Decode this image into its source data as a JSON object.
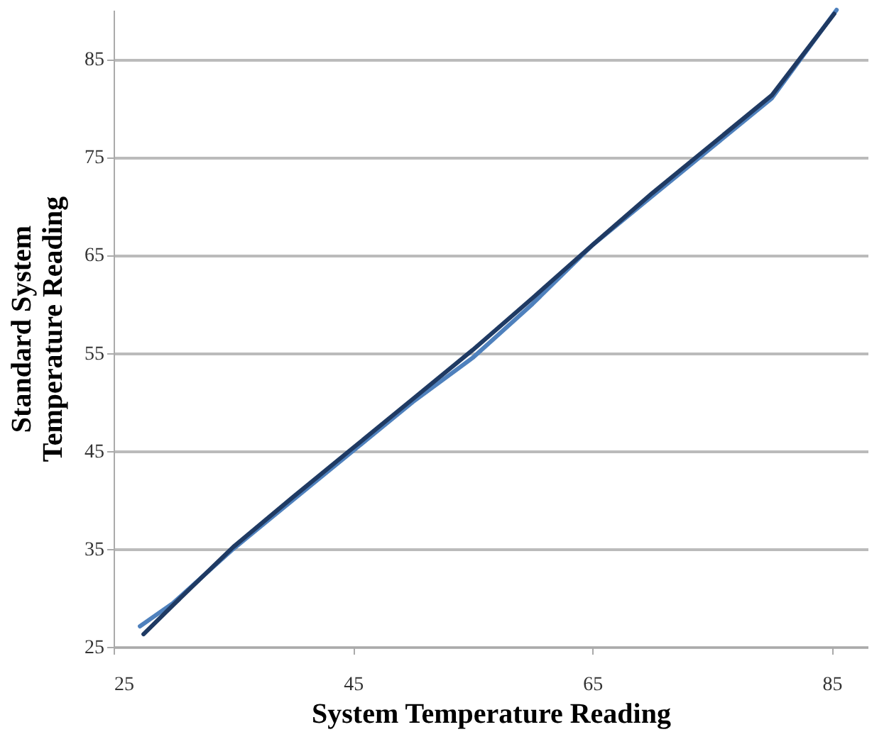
{
  "chart_data": {
    "type": "line",
    "xlabel": "System Temperature Reading",
    "ylabel": "Standard System Temperature Reading",
    "xlim": [
      25,
      88
    ],
    "ylim": [
      25,
      90
    ],
    "xticks": [
      25,
      45,
      65,
      85
    ],
    "yticks": [
      25,
      35,
      45,
      55,
      65,
      75,
      85
    ],
    "grid": "y",
    "marker": "none",
    "line_style": "solid",
    "series": [
      {
        "color": "#4f81bd",
        "x": [
          27.2,
          30,
          35,
          40,
          45,
          50,
          55,
          60,
          65,
          70,
          75,
          80,
          85.4
        ],
        "values": [
          27.1,
          29.5,
          35,
          40,
          45,
          50,
          54.5,
          60,
          66,
          71,
          76,
          81,
          90
        ]
      },
      {
        "color": "#1f3a63",
        "x": [
          27.5,
          30,
          35,
          40,
          45,
          50,
          55,
          60,
          65,
          70,
          75,
          80,
          85.2
        ],
        "values": [
          26.3,
          29.3,
          35.2,
          40.3,
          45.3,
          50.3,
          55.3,
          60.6,
          66,
          71.3,
          76.3,
          81.3,
          89.6
        ]
      }
    ]
  }
}
